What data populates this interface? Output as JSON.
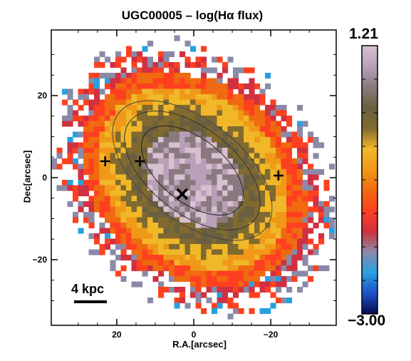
{
  "chart_data": {
    "type": "heatmap",
    "title": "UGC00005 – log(Hα flux)",
    "xlabel": "R.A.[arcsec]",
    "ylabel": "Dec[arcsec]",
    "x_ticks": [
      "20",
      "0",
      "−20"
    ],
    "y_ticks": [
      "20",
      "0",
      "−20"
    ],
    "xlim": [
      37,
      -37
    ],
    "ylim": [
      -36,
      36
    ],
    "colorbar": {
      "min_label": "−3.00",
      "max_label": "1.21",
      "min": -3.0,
      "max": 1.21,
      "colors": [
        "#050a50",
        "#1e50c8",
        "#28a0e0",
        "#8a8aa8",
        "#d03040",
        "#ff4020",
        "#f06a10",
        "#f09818",
        "#f0b828",
        "#806a30",
        "#6a6040",
        "#8a7a80",
        "#b8a0b8",
        "#d8c0d0"
      ]
    },
    "scale_bar_label": "4 kpc",
    "markers": [
      {
        "type": "center-x",
        "x": 3,
        "y": -4
      },
      {
        "type": "plus",
        "x": 23,
        "y": 4
      },
      {
        "type": "plus",
        "x": 14,
        "y": 4
      },
      {
        "type": "plus",
        "x": -22,
        "y": 0.5
      }
    ]
  }
}
